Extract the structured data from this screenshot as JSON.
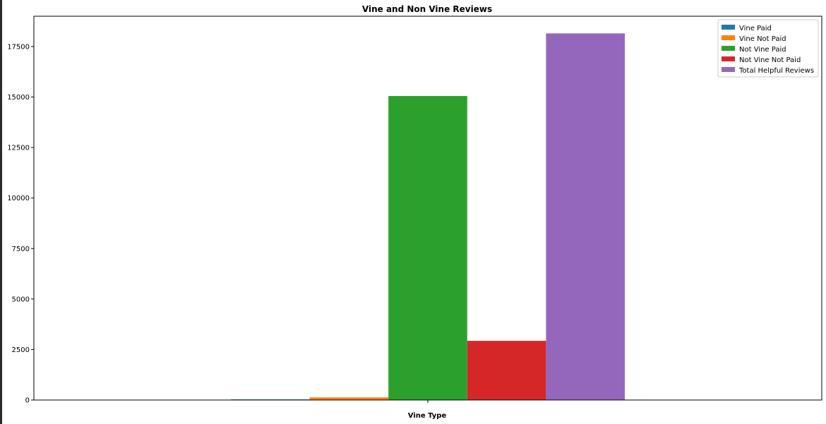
{
  "chart_data": {
    "type": "bar",
    "title": "Vine and Non Vine Reviews",
    "xlabel": "Vine Type",
    "ylabel": "",
    "ylim": [
      0,
      19000
    ],
    "yticks": [
      0,
      2500,
      5000,
      7500,
      10000,
      12500,
      15000,
      17500
    ],
    "grid": false,
    "legend_position": "top-right",
    "categories": [
      ""
    ],
    "series": [
      {
        "name": "Vine Paid",
        "color": "#1f77b4",
        "values": [
          30
        ]
      },
      {
        "name": "Vine Not Paid",
        "color": "#ff7f0e",
        "values": [
          130
        ]
      },
      {
        "name": "Not Vine Paid",
        "color": "#2ca02c",
        "values": [
          15050
        ]
      },
      {
        "name": "Not Vine Not Paid",
        "color": "#d62728",
        "values": [
          2930
        ]
      },
      {
        "name": "Total Helpful Reviews",
        "color": "#9467bd",
        "values": [
          18150
        ]
      }
    ]
  }
}
